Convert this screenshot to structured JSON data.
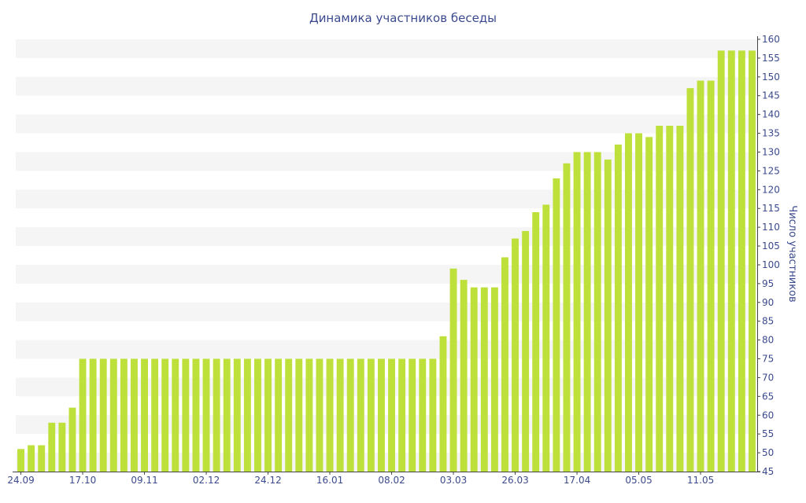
{
  "chart_data": {
    "type": "bar",
    "title": "Динамика участников беседы",
    "xlabel": "",
    "ylabel": "Число участников",
    "ylim": [
      45,
      160
    ],
    "y_ticks": [
      45,
      50,
      55,
      60,
      65,
      70,
      75,
      80,
      85,
      90,
      95,
      100,
      105,
      110,
      115,
      120,
      125,
      130,
      135,
      140,
      145,
      150,
      155,
      160
    ],
    "y_axis_side": "right",
    "grid": "alternating horizontal bands",
    "bar_color": "#bde03a",
    "band_color": "#f5f5f5",
    "text_color": "#3b4a8e",
    "x_tick_labels": [
      {
        "index": 0,
        "label": "24.09"
      },
      {
        "index": 6,
        "label": "17.10"
      },
      {
        "index": 12,
        "label": "09.11"
      },
      {
        "index": 18,
        "label": "02.12"
      },
      {
        "index": 24,
        "label": "24.12"
      },
      {
        "index": 30,
        "label": "16.01"
      },
      {
        "index": 36,
        "label": "08.02"
      },
      {
        "index": 42,
        "label": "03.03"
      },
      {
        "index": 48,
        "label": "26.03"
      },
      {
        "index": 54,
        "label": "17.04"
      },
      {
        "index": 60,
        "label": "05.05"
      },
      {
        "index": 66,
        "label": "11.05"
      }
    ],
    "values": [
      51,
      52,
      52,
      58,
      58,
      62,
      75,
      75,
      75,
      75,
      75,
      75,
      75,
      75,
      75,
      75,
      75,
      75,
      75,
      75,
      75,
      75,
      75,
      75,
      75,
      75,
      75,
      75,
      75,
      75,
      75,
      75,
      75,
      75,
      75,
      75,
      75,
      75,
      75,
      75,
      75,
      81,
      99,
      96,
      94,
      94,
      94,
      102,
      107,
      109,
      114,
      116,
      123,
      127,
      130,
      130,
      130,
      128,
      132,
      135,
      135,
      134,
      137,
      137,
      137,
      147,
      149,
      149,
      157,
      157,
      157,
      157
    ]
  }
}
